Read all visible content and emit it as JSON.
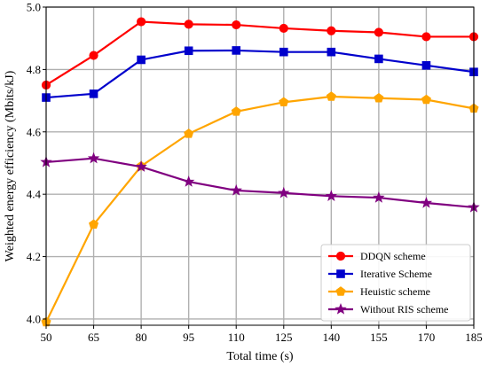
{
  "chart_data": {
    "type": "line",
    "title": "",
    "xlabel": "Total time (s)",
    "ylabel": "Weighted energy efficiency (Mbits/kJ)",
    "x": [
      50,
      65,
      80,
      95,
      110,
      125,
      140,
      155,
      170,
      185
    ],
    "xticks": [
      "50",
      "65",
      "80",
      "95",
      "110",
      "125",
      "140",
      "155",
      "170",
      "185"
    ],
    "yticks": [
      "4.0",
      "4.2",
      "4.4",
      "4.6",
      "4.8",
      "5.0"
    ],
    "xlim": [
      50,
      185
    ],
    "ylim": [
      3.98,
      5.0
    ],
    "grid": true,
    "legend_position": "bottom-right",
    "series": [
      {
        "name": "DDQN scheme",
        "color": "#ff0000",
        "marker": "circle",
        "values": [
          4.75,
          4.845,
          4.953,
          4.945,
          4.943,
          4.932,
          4.924,
          4.919,
          4.905,
          4.905
        ]
      },
      {
        "name": "Iterative Scheme",
        "color": "#0000cc",
        "marker": "square",
        "values": [
          4.71,
          4.722,
          4.831,
          4.86,
          4.861,
          4.856,
          4.856,
          4.834,
          4.813,
          4.792
        ]
      },
      {
        "name": "Heuistic scheme",
        "color": "#ffa500",
        "marker": "pentagon",
        "values": [
          3.99,
          4.303,
          4.49,
          4.594,
          4.665,
          4.695,
          4.713,
          4.708,
          4.703,
          4.675
        ]
      },
      {
        "name": "Without RIS scheme",
        "color": "#800080",
        "marker": "star",
        "values": [
          4.503,
          4.515,
          4.488,
          4.44,
          4.412,
          4.404,
          4.394,
          4.389,
          4.372,
          4.358
        ]
      }
    ]
  }
}
